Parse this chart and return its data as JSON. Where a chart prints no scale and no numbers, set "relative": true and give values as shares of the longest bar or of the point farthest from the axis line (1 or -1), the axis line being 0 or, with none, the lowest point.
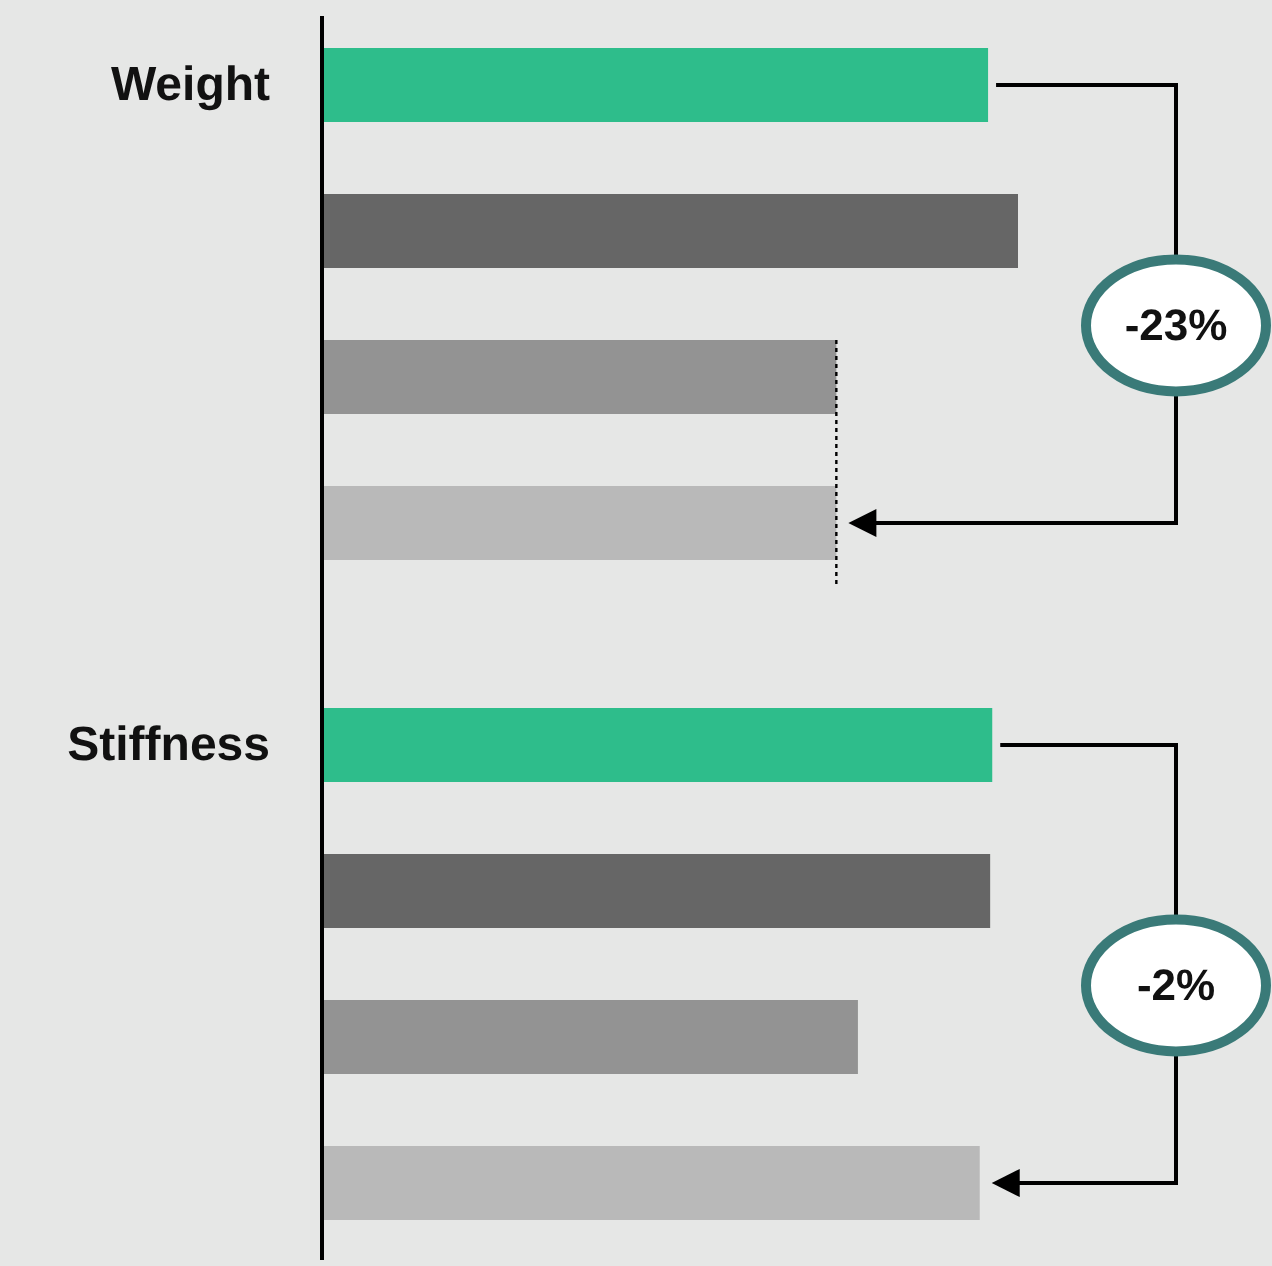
{
  "chart_data": {
    "type": "bar",
    "orientation": "horizontal",
    "relative": true,
    "categories": [
      "Weight",
      "Stiffness"
    ],
    "series": [
      {
        "color": "#2ebd8b",
        "values": [
          0.957,
          0.963
        ]
      },
      {
        "color": "#666666",
        "values": [
          1,
          0.96
        ]
      },
      {
        "color": "#939393",
        "values": [
          0.739,
          0.77
        ]
      },
      {
        "color": "#b9b9b9",
        "values": [
          0.739,
          0.945
        ]
      }
    ],
    "annotations": [
      "-23%",
      "-2%"
    ],
    "ref_lines": [
      {
        "axis": "x",
        "value": 0.739,
        "line_style": "dotted",
        "color": "#000000"
      }
    ]
  }
}
